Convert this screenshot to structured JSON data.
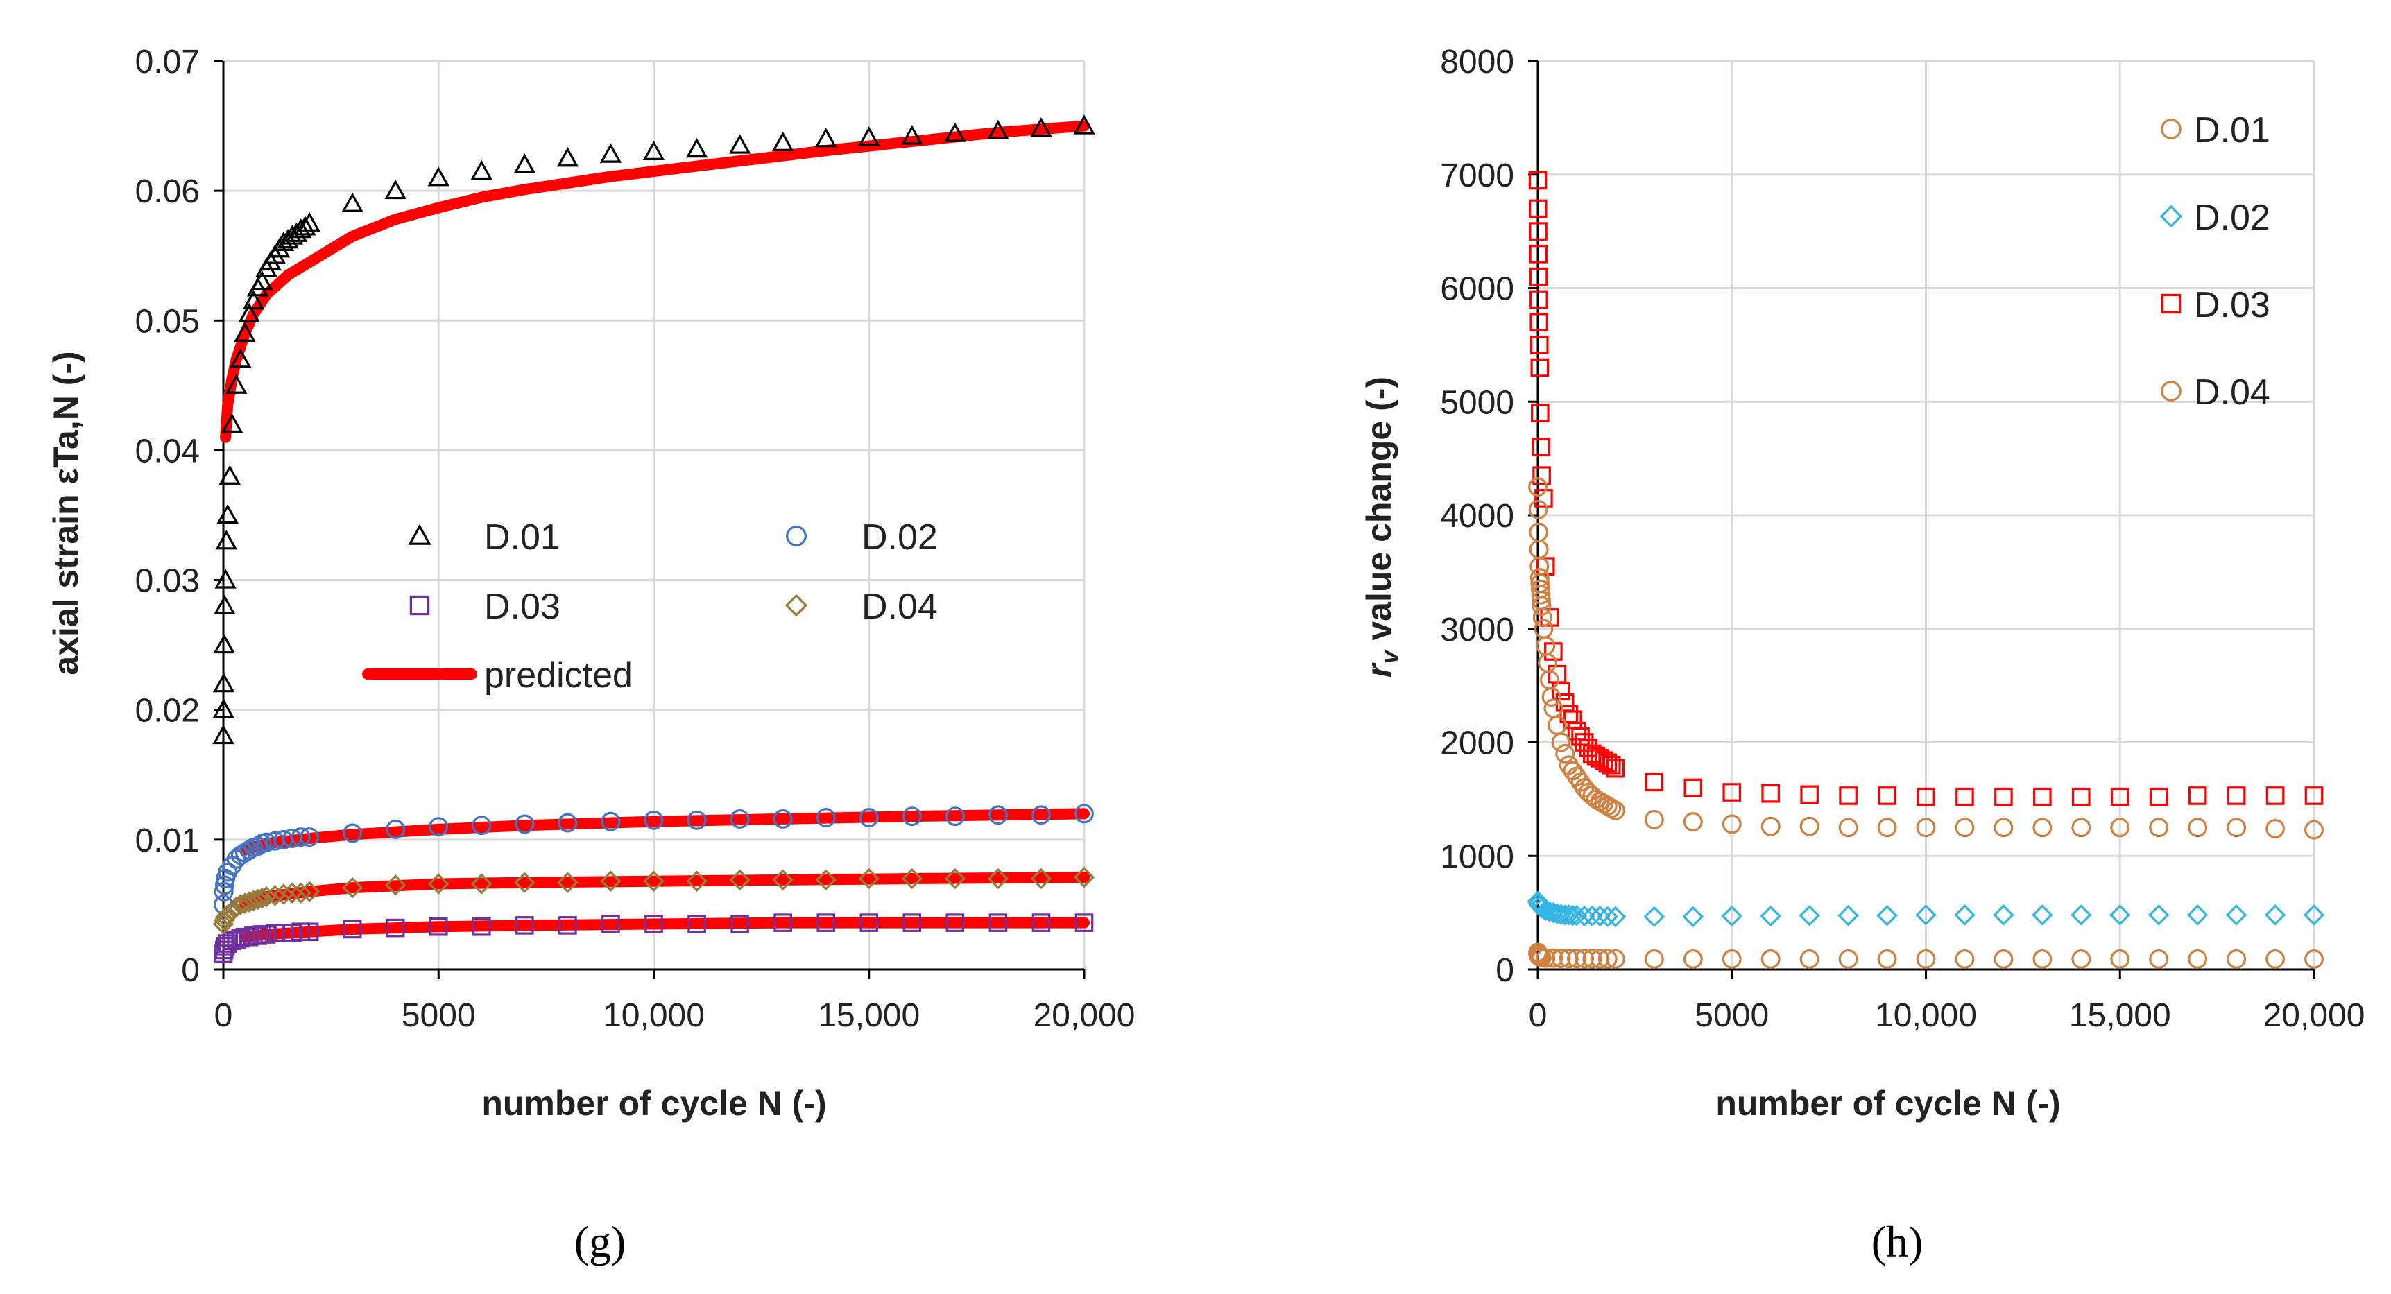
{
  "chart_data": [
    {
      "id": "g",
      "type": "scatter",
      "caption": "(g)",
      "xlabel": "number of cycle N (-)",
      "ylabel": "axial strain εTa,N (-)",
      "xlim": [
        0,
        20000
      ],
      "ylim": [
        0,
        0.07
      ],
      "xticks": [
        0,
        5000,
        10000,
        15000,
        20000
      ],
      "xtick_labels": [
        "0",
        "5000",
        "10,000",
        "15,000",
        "20,000"
      ],
      "yticks": [
        0,
        0.01,
        0.02,
        0.03,
        0.04,
        0.05,
        0.06,
        0.07
      ],
      "ytick_labels": [
        "0",
        "0.01",
        "0.02",
        "0.03",
        "0.04",
        "0.05",
        "0.06",
        "0.07"
      ],
      "grid": true,
      "legend": [
        {
          "name": "D.01",
          "marker": "triangle",
          "color": "#000000"
        },
        {
          "name": "D.02",
          "marker": "circle",
          "color": "#4472c4"
        },
        {
          "name": "D.03",
          "marker": "square",
          "color": "#7030a0"
        },
        {
          "name": "D.04",
          "marker": "diamond",
          "color": "#997a3d"
        },
        {
          "name": "predicted",
          "marker": "line",
          "color": "#ff0000"
        }
      ],
      "series": [
        {
          "name": "D.01",
          "marker": "triangle",
          "color": "#000000",
          "x": [
            1,
            5,
            10,
            20,
            30,
            50,
            70,
            100,
            150,
            200,
            300,
            400,
            500,
            600,
            700,
            800,
            900,
            1000,
            1100,
            1200,
            1300,
            1400,
            1500,
            1600,
            1700,
            1800,
            1900,
            2000,
            3000,
            4000,
            5000,
            6000,
            7000,
            8000,
            9000,
            10000,
            11000,
            12000,
            13000,
            14000,
            15000,
            16000,
            17000,
            18000,
            19000,
            20000
          ],
          "y": [
            0.018,
            0.02,
            0.022,
            0.025,
            0.028,
            0.03,
            0.033,
            0.035,
            0.038,
            0.042,
            0.045,
            0.047,
            0.049,
            0.0505,
            0.0515,
            0.0525,
            0.053,
            0.054,
            0.0545,
            0.055,
            0.0555,
            0.056,
            0.0562,
            0.0565,
            0.0567,
            0.057,
            0.0572,
            0.0575,
            0.059,
            0.06,
            0.061,
            0.0615,
            0.062,
            0.0625,
            0.0628,
            0.063,
            0.0632,
            0.0635,
            0.0637,
            0.064,
            0.0641,
            0.0642,
            0.0644,
            0.0646,
            0.0648,
            0.065
          ]
        },
        {
          "name": "D.02",
          "marker": "circle",
          "color": "#4472c4",
          "x": [
            1,
            10,
            30,
            50,
            100,
            200,
            300,
            400,
            500,
            600,
            700,
            800,
            900,
            1000,
            1200,
            1400,
            1600,
            1800,
            2000,
            3000,
            4000,
            5000,
            6000,
            7000,
            8000,
            9000,
            10000,
            11000,
            12000,
            13000,
            14000,
            15000,
            16000,
            17000,
            18000,
            19000,
            20000
          ],
          "y": [
            0.005,
            0.006,
            0.0065,
            0.007,
            0.0075,
            0.008,
            0.0085,
            0.0088,
            0.009,
            0.0092,
            0.0094,
            0.0095,
            0.0097,
            0.0098,
            0.0099,
            0.01,
            0.0101,
            0.0102,
            0.0102,
            0.0105,
            0.0108,
            0.011,
            0.0111,
            0.0112,
            0.0113,
            0.0114,
            0.0115,
            0.0115,
            0.0116,
            0.0116,
            0.0117,
            0.0117,
            0.0118,
            0.0118,
            0.0119,
            0.0119,
            0.012
          ]
        },
        {
          "name": "D.03",
          "marker": "square",
          "color": "#7030a0",
          "x": [
            1,
            20,
            50,
            100,
            200,
            300,
            400,
            500,
            600,
            700,
            800,
            900,
            1000,
            1200,
            1400,
            1600,
            1800,
            2000,
            3000,
            4000,
            5000,
            6000,
            7000,
            8000,
            9000,
            10000,
            11000,
            12000,
            13000,
            14000,
            15000,
            16000,
            17000,
            18000,
            19000,
            20000
          ],
          "y": [
            0.0012,
            0.0015,
            0.0018,
            0.002,
            0.0022,
            0.0023,
            0.0024,
            0.0025,
            0.0025,
            0.0026,
            0.0026,
            0.0027,
            0.0027,
            0.0028,
            0.0028,
            0.0028,
            0.0029,
            0.0029,
            0.0031,
            0.0032,
            0.0033,
            0.0033,
            0.0034,
            0.0034,
            0.0035,
            0.0035,
            0.0035,
            0.0035,
            0.0036,
            0.0036,
            0.0036,
            0.0036,
            0.0036,
            0.0036,
            0.0036,
            0.0036
          ]
        },
        {
          "name": "D.04",
          "marker": "diamond",
          "color": "#997a3d",
          "x": [
            1,
            20,
            50,
            100,
            200,
            300,
            400,
            500,
            600,
            700,
            800,
            900,
            1000,
            1200,
            1400,
            1600,
            1800,
            2000,
            3000,
            4000,
            5000,
            6000,
            7000,
            8000,
            9000,
            10000,
            11000,
            12000,
            13000,
            14000,
            15000,
            16000,
            17000,
            18000,
            19000,
            20000
          ],
          "y": [
            0.0035,
            0.0038,
            0.004,
            0.0042,
            0.0045,
            0.0048,
            0.005,
            0.0051,
            0.0052,
            0.0053,
            0.0054,
            0.0055,
            0.0056,
            0.0057,
            0.0058,
            0.0059,
            0.0059,
            0.006,
            0.0063,
            0.0065,
            0.0066,
            0.0066,
            0.0067,
            0.0067,
            0.0068,
            0.0068,
            0.0068,
            0.0069,
            0.0069,
            0.0069,
            0.007,
            0.007,
            0.007,
            0.007,
            0.007,
            0.0071
          ]
        }
      ],
      "predicted": [
        {
          "name": "predicted D.01",
          "x": [
            50,
            100,
            200,
            300,
            500,
            700,
            1000,
            1500,
            2000,
            3000,
            4000,
            5000,
            6000,
            7000,
            8000,
            9000,
            10000,
            12000,
            14000,
            16000,
            18000,
            20000
          ],
          "y": [
            0.041,
            0.0435,
            0.0455,
            0.047,
            0.049,
            0.0505,
            0.052,
            0.0535,
            0.0545,
            0.0565,
            0.0578,
            0.0587,
            0.0595,
            0.0601,
            0.0606,
            0.0611,
            0.0615,
            0.0623,
            0.0631,
            0.0638,
            0.0645,
            0.065
          ]
        },
        {
          "name": "predicted D.02",
          "x": [
            500,
            1000,
            2000,
            3000,
            5000,
            7000,
            10000,
            13000,
            16000,
            20000
          ],
          "y": [
            0.0092,
            0.0097,
            0.0101,
            0.0104,
            0.0108,
            0.0111,
            0.0114,
            0.0116,
            0.0118,
            0.012
          ]
        },
        {
          "name": "predicted D.03",
          "x": [
            500,
            1000,
            2000,
            3000,
            5000,
            7000,
            10000,
            13000,
            16000,
            20000
          ],
          "y": [
            0.0025,
            0.0027,
            0.0029,
            0.0031,
            0.0033,
            0.0034,
            0.0035,
            0.0036,
            0.0036,
            0.0036
          ]
        },
        {
          "name": "predicted D.04",
          "x": [
            500,
            1000,
            2000,
            3000,
            5000,
            7000,
            10000,
            13000,
            16000,
            20000
          ],
          "y": [
            0.0051,
            0.0056,
            0.006,
            0.0063,
            0.0066,
            0.0067,
            0.0068,
            0.0069,
            0.007,
            0.0071
          ]
        }
      ]
    },
    {
      "id": "h",
      "type": "scatter",
      "caption": "(h)",
      "xlabel": "number of cycle N (-)",
      "ylabel_main": "r",
      "ylabel_sub": "v",
      "ylabel_rest": " value change (-)",
      "xlim": [
        0,
        20000
      ],
      "ylim": [
        0,
        8000
      ],
      "xticks": [
        0,
        5000,
        10000,
        15000,
        20000
      ],
      "xtick_labels": [
        "0",
        "5000",
        "10,000",
        "15,000",
        "20,000"
      ],
      "yticks": [
        0,
        1000,
        2000,
        3000,
        4000,
        5000,
        6000,
        7000,
        8000
      ],
      "ytick_labels": [
        "0",
        "1000",
        "2000",
        "3000",
        "4000",
        "5000",
        "6000",
        "7000",
        "8000"
      ],
      "grid": true,
      "legend": [
        {
          "name": "D.01",
          "marker": "circle",
          "color": "#d08040"
        },
        {
          "name": "D.02",
          "marker": "diamond",
          "color": "#33b5e5"
        },
        {
          "name": "D.03",
          "marker": "square",
          "color": "#ff0000"
        },
        {
          "name": "D.04",
          "marker": "circle",
          "color": "#d08040"
        }
      ],
      "series": [
        {
          "name": "D.01",
          "marker": "circle",
          "color": "#d08040",
          "x": [
            1,
            10,
            20,
            50,
            100,
            200,
            400,
            600,
            800,
            1000,
            1200,
            1400,
            1600,
            1800,
            2000,
            3000,
            4000,
            5000,
            6000,
            7000,
            8000,
            9000,
            10000,
            11000,
            12000,
            13000,
            14000,
            15000,
            16000,
            17000,
            18000,
            19000,
            20000
          ],
          "y": [
            150,
            130,
            120,
            110,
            105,
            100,
            100,
            98,
            97,
            96,
            95,
            95,
            94,
            94,
            93,
            92,
            92,
            92,
            92,
            92,
            92,
            92,
            92,
            92,
            92,
            92,
            92,
            92,
            92,
            92,
            92,
            92,
            92
          ]
        },
        {
          "name": "D.02",
          "marker": "diamond",
          "color": "#33b5e5",
          "x": [
            1,
            10,
            50,
            100,
            200,
            300,
            400,
            500,
            600,
            700,
            800,
            900,
            1000,
            1200,
            1400,
            1600,
            1800,
            2000,
            3000,
            4000,
            5000,
            6000,
            7000,
            8000,
            9000,
            10000,
            11000,
            12000,
            13000,
            14000,
            15000,
            16000,
            17000,
            18000,
            19000,
            20000
          ],
          "y": [
            600,
            580,
            560,
            540,
            520,
            510,
            500,
            490,
            485,
            480,
            480,
            475,
            475,
            470,
            470,
            470,
            465,
            465,
            465,
            465,
            470,
            470,
            475,
            475,
            475,
            480,
            480,
            480,
            480,
            480,
            480,
            480,
            480,
            480,
            480,
            480
          ]
        },
        {
          "name": "D.03",
          "marker": "square",
          "color": "#ff0000",
          "x": [
            1,
            5,
            10,
            15,
            20,
            25,
            30,
            40,
            50,
            60,
            80,
            100,
            150,
            200,
            300,
            400,
            500,
            600,
            700,
            800,
            900,
            1000,
            1100,
            1200,
            1300,
            1400,
            1500,
            1600,
            1700,
            1800,
            1900,
            2000,
            3000,
            4000,
            5000,
            6000,
            7000,
            8000,
            9000,
            10000,
            11000,
            12000,
            13000,
            14000,
            15000,
            16000,
            17000,
            18000,
            19000,
            20000
          ],
          "y": [
            6950,
            6700,
            6500,
            6300,
            6100,
            5900,
            5700,
            5500,
            5300,
            4900,
            4600,
            4350,
            4150,
            3550,
            3100,
            2800,
            2600,
            2450,
            2350,
            2250,
            2200,
            2100,
            2050,
            2000,
            1950,
            1900,
            1880,
            1860,
            1840,
            1820,
            1800,
            1770,
            1650,
            1600,
            1560,
            1550,
            1540,
            1530,
            1530,
            1520,
            1520,
            1520,
            1520,
            1520,
            1520,
            1520,
            1530,
            1530,
            1530,
            1530
          ]
        },
        {
          "name": "D.04",
          "marker": "circle",
          "color": "#d08040",
          "x": [
            1,
            10,
            20,
            30,
            40,
            50,
            60,
            70,
            80,
            90,
            100,
            120,
            150,
            200,
            250,
            300,
            350,
            400,
            500,
            600,
            700,
            800,
            900,
            1000,
            1100,
            1200,
            1300,
            1400,
            1500,
            1600,
            1700,
            1800,
            1900,
            2000,
            3000,
            4000,
            5000,
            6000,
            7000,
            8000,
            9000,
            10000,
            11000,
            12000,
            13000,
            14000,
            15000,
            16000,
            17000,
            18000,
            19000,
            20000
          ],
          "y": [
            4250,
            4050,
            3850,
            3700,
            3550,
            3450,
            3400,
            3350,
            3300,
            3250,
            3200,
            3100,
            3000,
            2850,
            2700,
            2550,
            2400,
            2300,
            2150,
            2000,
            1900,
            1800,
            1750,
            1700,
            1650,
            1600,
            1560,
            1530,
            1500,
            1480,
            1460,
            1440,
            1420,
            1400,
            1320,
            1300,
            1280,
            1260,
            1260,
            1250,
            1250,
            1250,
            1250,
            1250,
            1250,
            1250,
            1250,
            1250,
            1250,
            1250,
            1240,
            1230
          ]
        }
      ]
    }
  ]
}
